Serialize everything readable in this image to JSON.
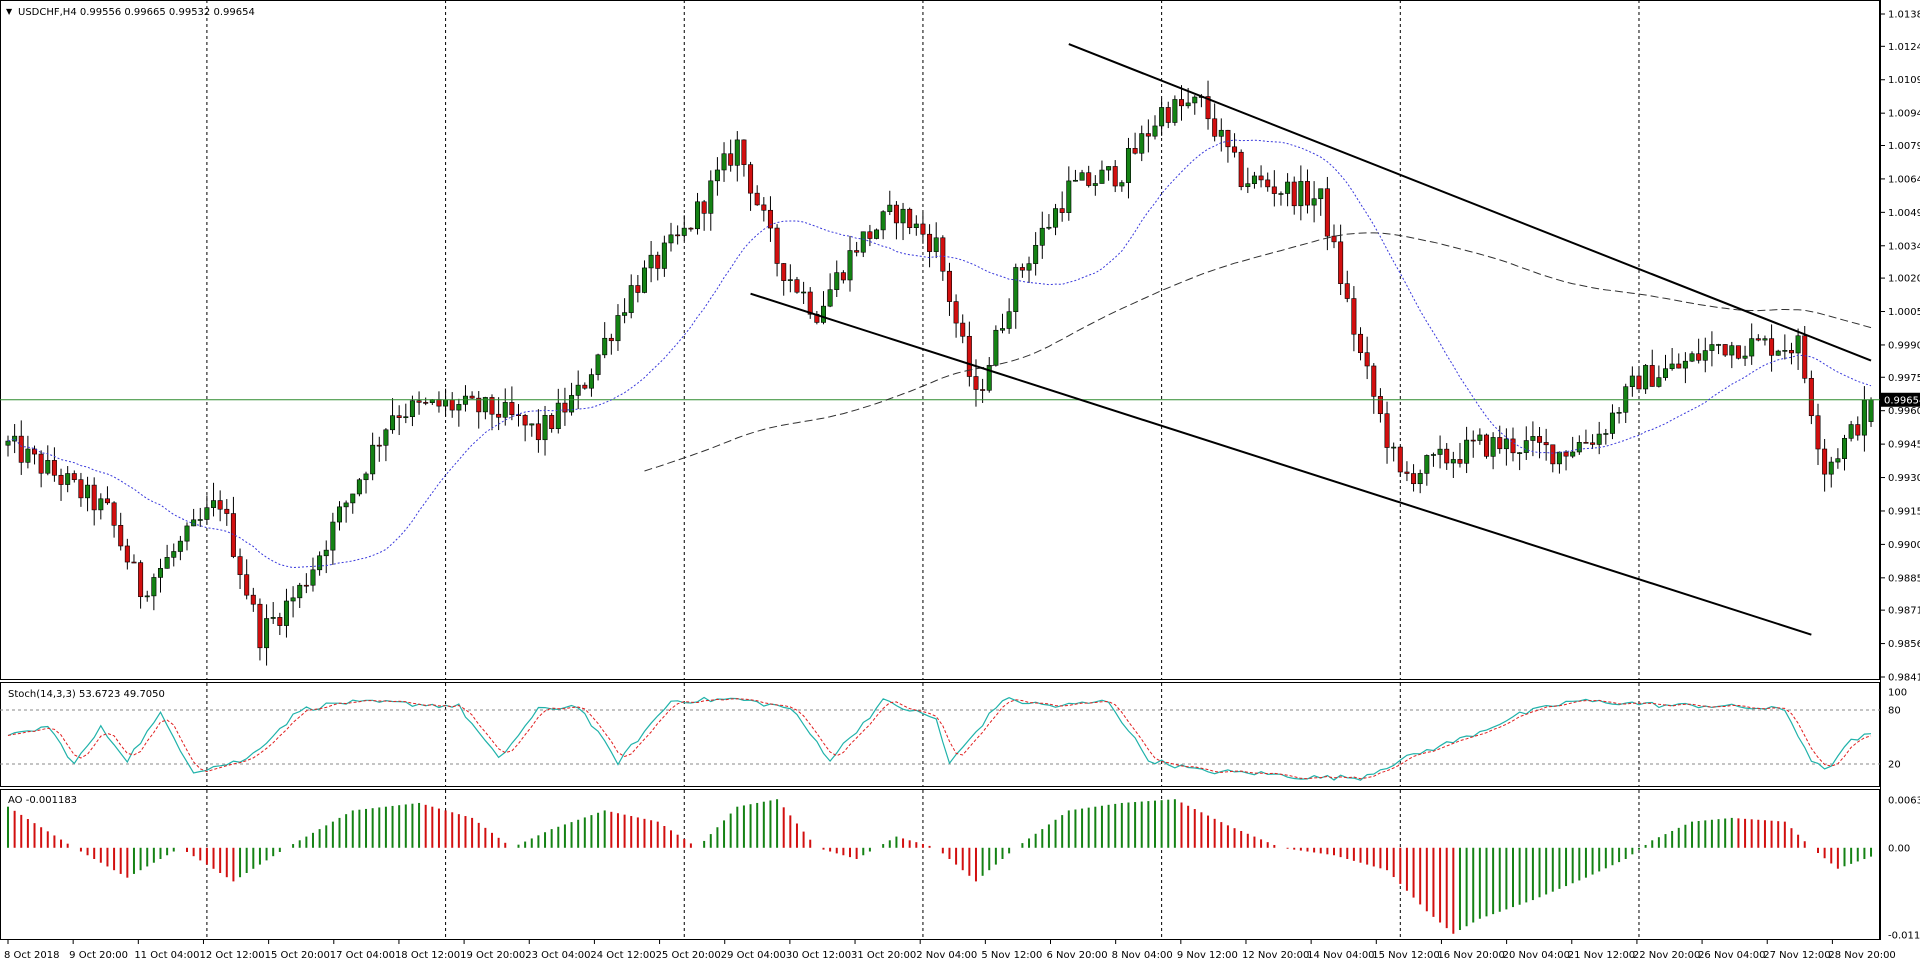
{
  "colors": {
    "bull": "#148214",
    "bear": "#d20f0f",
    "ma_fast": "#3a3adc",
    "ma_slow": "#303030",
    "bid_line": "#2e8b2e",
    "stoch_main": "#20b2aa",
    "stoch_signal": "#e02020",
    "grid": "#000000"
  },
  "chart_data": {
    "type": "candlestick",
    "title": "USDCHF,H4  0.99556 0.99665 0.99532 0.99654",
    "symbol": "USDCHF",
    "timeframe": "H4",
    "ohlc_header": {
      "open": 0.99556,
      "high": 0.99665,
      "low": 0.99532,
      "close": 0.99654
    },
    "current_price": 0.99654,
    "current_price_label": "0.99654",
    "ylim": [
      0.9841,
      1.01385
    ],
    "y_ticks": [
      "1.01385",
      "1.01240",
      "1.01090",
      "1.00940",
      "1.00795",
      "1.00645",
      "1.00495",
      "1.00345",
      "1.00200",
      "1.00050",
      "0.99900",
      "0.99755",
      "0.99605",
      "0.99455",
      "0.99305",
      "0.99155",
      "0.99005",
      "0.98855",
      "0.98710",
      "0.98560",
      "0.98410"
    ],
    "x_ticks": [
      "8 Oct 2018",
      "9 Oct 20:00",
      "11 Oct 04:00",
      "12 Oct 12:00",
      "15 Oct 20:00",
      "17 Oct 04:00",
      "18 Oct 12:00",
      "19 Oct 20:00",
      "23 Oct 04:00",
      "24 Oct 12:00",
      "25 Oct 20:00",
      "29 Oct 04:00",
      "30 Oct 12:00",
      "31 Oct 20:00",
      "2 Nov 04:00",
      "5 Nov 12:00",
      "6 Nov 20:00",
      "8 Nov 04:00",
      "9 Nov 12:00",
      "12 Nov 20:00",
      "14 Nov 04:00",
      "15 Nov 12:00",
      "16 Nov 20:00",
      "20 Nov 04:00",
      "21 Nov 12:00",
      "22 Nov 20:00",
      "26 Nov 04:00",
      "27 Nov 12:00",
      "28 Nov 20:00"
    ],
    "x_anchor_points": [
      [
        0,
        0.9945
      ],
      [
        8,
        0.993
      ],
      [
        15,
        0.9915
      ],
      [
        20,
        0.988
      ],
      [
        26,
        0.99
      ],
      [
        32,
        0.992
      ],
      [
        38,
        0.986
      ],
      [
        44,
        0.988
      ],
      [
        52,
        0.9925
      ],
      [
        58,
        0.996
      ],
      [
        66,
        0.9963
      ],
      [
        74,
        0.996
      ],
      [
        80,
        0.995
      ],
      [
        86,
        0.9968
      ],
      [
        94,
        1.0015
      ],
      [
        102,
        1.004
      ],
      [
        110,
        1.008
      ],
      [
        116,
        1.0028
      ],
      [
        122,
        1.0005
      ],
      [
        128,
        1.0035
      ],
      [
        134,
        1.005
      ],
      [
        140,
        1.0035
      ],
      [
        146,
        0.9965
      ],
      [
        152,
        1.002
      ],
      [
        160,
        1.006
      ],
      [
        168,
        1.0068
      ],
      [
        174,
        1.0095
      ],
      [
        180,
        1.0098
      ],
      [
        186,
        1.0065
      ],
      [
        192,
        1.006
      ],
      [
        198,
        1.0055
      ],
      [
        204,
        0.9985
      ],
      [
        210,
        0.993
      ],
      [
        216,
        0.9938
      ],
      [
        222,
        0.9945
      ],
      [
        228,
        0.9945
      ],
      [
        234,
        0.9942
      ],
      [
        240,
        0.995
      ],
      [
        246,
        0.9975
      ],
      [
        252,
        0.998
      ],
      [
        258,
        0.999
      ],
      [
        264,
        0.999
      ],
      [
        270,
        0.999
      ],
      [
        274,
        0.9935
      ],
      [
        278,
        0.995
      ],
      [
        281,
        0.9965
      ]
    ],
    "moving_averages": [
      {
        "name": "MA fast",
        "style": "dotted"
      },
      {
        "name": "MA slow",
        "style": "dashed"
      }
    ],
    "trendlines": [
      {
        "from": [
          160,
          1.0125
        ],
        "to": [
          281,
          0.9983
        ]
      },
      {
        "from": [
          112,
          1.0013
        ],
        "to": [
          272,
          0.986
        ]
      }
    ],
    "indicators": {
      "stochastic": {
        "label": "Stoch(14,3,3) 53.6723 49.7050",
        "levels": [
          "100",
          "80",
          "20",
          "0"
        ],
        "ylim": [
          0,
          100
        ],
        "anchor_points": [
          [
            0,
            50
          ],
          [
            6,
            62
          ],
          [
            10,
            20
          ],
          [
            14,
            60
          ],
          [
            18,
            25
          ],
          [
            23,
            75
          ],
          [
            28,
            12
          ],
          [
            36,
            25
          ],
          [
            44,
            80
          ],
          [
            50,
            88
          ],
          [
            58,
            88
          ],
          [
            68,
            84
          ],
          [
            74,
            25
          ],
          [
            80,
            80
          ],
          [
            86,
            85
          ],
          [
            92,
            22
          ],
          [
            100,
            90
          ],
          [
            110,
            92
          ],
          [
            118,
            82
          ],
          [
            124,
            25
          ],
          [
            132,
            90
          ],
          [
            140,
            70
          ],
          [
            142,
            20
          ],
          [
            150,
            92
          ],
          [
            158,
            84
          ],
          [
            166,
            90
          ],
          [
            172,
            25
          ],
          [
            180,
            12
          ],
          [
            188,
            10
          ],
          [
            196,
            5
          ],
          [
            204,
            5
          ],
          [
            212,
            30
          ],
          [
            220,
            50
          ],
          [
            228,
            75
          ],
          [
            236,
            90
          ],
          [
            244,
            88
          ],
          [
            250,
            85
          ],
          [
            256,
            85
          ],
          [
            262,
            83
          ],
          [
            268,
            80
          ],
          [
            272,
            25
          ],
          [
            274,
            12
          ],
          [
            278,
            45
          ],
          [
            281,
            53.67
          ]
        ],
        "signal_value": "49.7050",
        "main_value": "53.6723"
      },
      "awesome_oscillator": {
        "label": "AO -0.001183",
        "y_ticks": [
          "0.006396",
          "0.00",
          "-0.011675"
        ],
        "ylim": [
          -0.011675,
          0.006396
        ],
        "anchor_points": [
          [
            0,
            0.0055
          ],
          [
            10,
            0.0
          ],
          [
            18,
            -0.004
          ],
          [
            26,
            0.0
          ],
          [
            34,
            -0.0045
          ],
          [
            42,
            0.0
          ],
          [
            52,
            0.005
          ],
          [
            62,
            0.006
          ],
          [
            70,
            0.004
          ],
          [
            76,
            0.0
          ],
          [
            82,
            0.0025
          ],
          [
            90,
            0.005
          ],
          [
            98,
            0.0035
          ],
          [
            104,
            0.0
          ],
          [
            110,
            0.0055
          ],
          [
            116,
            0.0065
          ],
          [
            122,
            0.0
          ],
          [
            128,
            -0.0015
          ],
          [
            134,
            0.0015
          ],
          [
            140,
            0.0
          ],
          [
            146,
            -0.0045
          ],
          [
            152,
            0.0
          ],
          [
            160,
            0.005
          ],
          [
            168,
            0.006
          ],
          [
            176,
            0.0065
          ],
          [
            184,
            0.003
          ],
          [
            192,
            0.0
          ],
          [
            200,
            -0.001
          ],
          [
            208,
            -0.003
          ],
          [
            214,
            -0.0085
          ],
          [
            218,
            -0.0115
          ],
          [
            222,
            -0.0095
          ],
          [
            230,
            -0.007
          ],
          [
            238,
            -0.004
          ],
          [
            244,
            -0.0015
          ],
          [
            248,
            0.001
          ],
          [
            254,
            0.0035
          ],
          [
            260,
            0.004
          ],
          [
            268,
            0.0035
          ],
          [
            272,
            0.0
          ],
          [
            276,
            -0.0028
          ],
          [
            281,
            -0.001183
          ]
        ]
      }
    }
  }
}
